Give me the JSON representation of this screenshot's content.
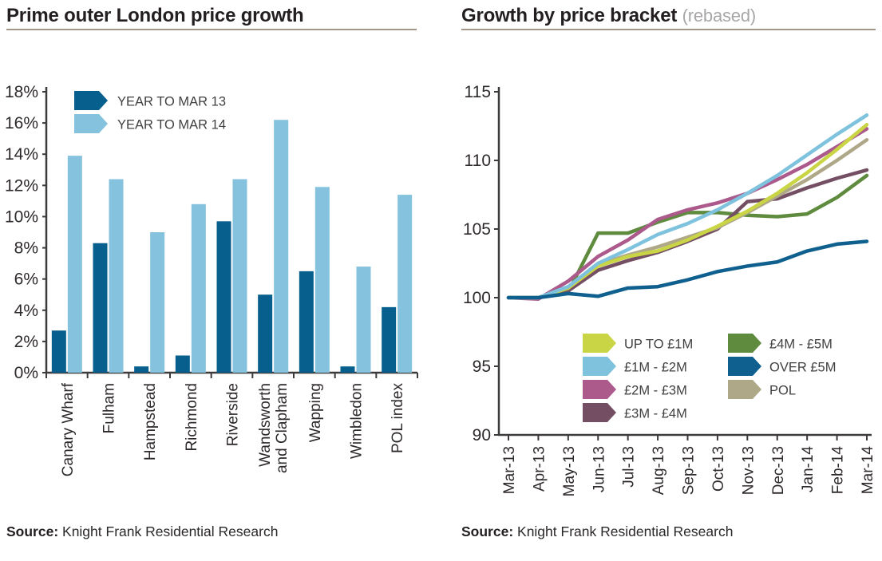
{
  "left": {
    "title": "Prime outer London price growth",
    "source_label": "Source:",
    "source_text": " Knight Frank Residential Research"
  },
  "right": {
    "title": "Growth by price bracket ",
    "title_suffix": "(rebased)",
    "source_label": "Source:",
    "source_text": " Knight Frank Residential Research"
  },
  "colors": {
    "title": "#231f20",
    "title_rule": "#a39789",
    "axis": "#3d3a3b",
    "tick_label": "#2e2a2b",
    "legend_text": "#414042",
    "rebased_suffix": "#a8a6a7"
  },
  "chart_data": [
    {
      "type": "bar",
      "title": "Prime outer London price growth",
      "categories": [
        "Canary Wharf",
        "Fulham",
        "Hampstead",
        "Richmond",
        "Riverside",
        "Wandsworth\nand Clapham",
        "Wapping",
        "Wimbledon",
        "POL index"
      ],
      "series": [
        {
          "name": "YEAR TO MAR 13",
          "color": "#075f8e",
          "values": [
            2.7,
            8.3,
            0.4,
            1.1,
            9.7,
            5.0,
            6.5,
            0.4,
            4.2
          ]
        },
        {
          "name": "YEAR TO MAR 14",
          "color": "#85c2dd",
          "values": [
            13.9,
            12.4,
            9.0,
            10.8,
            12.4,
            16.2,
            11.9,
            6.8,
            11.4
          ]
        }
      ],
      "ylim": [
        0,
        18
      ],
      "ytick_step": 2,
      "ytick_labels": [
        "0%",
        "2%",
        "4%",
        "6%",
        "8%",
        "10%",
        "12%",
        "14%",
        "16%",
        "18%"
      ],
      "grid": false,
      "legend_position": "top-left-inside"
    },
    {
      "type": "line",
      "title": "Growth by price bracket (rebased)",
      "x": [
        "Mar-13",
        "Apr-13",
        "May-13",
        "Jun-13",
        "Jul-13",
        "Aug-13",
        "Sep-13",
        "Oct-13",
        "Nov-13",
        "Dec-13",
        "Jan-14",
        "Feb-14",
        "Mar-14"
      ],
      "series": [
        {
          "name": "UP TO £1M",
          "color": "#c9d544",
          "values": [
            100,
            100,
            100.7,
            102.3,
            103.0,
            103.4,
            104.2,
            105.2,
            106.3,
            107.6,
            109.1,
            110.8,
            112.6
          ]
        },
        {
          "name": "£1M - £2M",
          "color": "#7ec2dd",
          "values": [
            100,
            100,
            100.8,
            102.5,
            103.5,
            104.6,
            105.4,
            106.4,
            107.6,
            108.9,
            110.4,
            111.9,
            113.3
          ]
        },
        {
          "name": "£2M - £3M",
          "color": "#ac5a8c",
          "values": [
            100,
            99.9,
            101.2,
            103.0,
            104.2,
            105.7,
            106.4,
            106.9,
            107.6,
            108.6,
            109.7,
            111.0,
            112.3
          ]
        },
        {
          "name": "£3M - £4M",
          "color": "#744f63",
          "values": [
            100,
            100,
            100.5,
            102.0,
            102.7,
            103.3,
            104.1,
            105.0,
            107.0,
            107.2,
            108.0,
            108.7,
            109.3
          ]
        },
        {
          "name": "£4M - £5M",
          "color": "#5e8b3d",
          "values": [
            100,
            100,
            100.4,
            104.7,
            104.7,
            105.5,
            106.2,
            106.2,
            106.0,
            105.9,
            106.1,
            107.3,
            108.9
          ]
        },
        {
          "name": "OVER £5M",
          "color": "#0f608e",
          "values": [
            100,
            100,
            100.3,
            100.1,
            100.7,
            100.8,
            101.3,
            101.9,
            102.3,
            102.6,
            103.4,
            103.9,
            104.1
          ]
        },
        {
          "name": "POL",
          "color": "#afa888",
          "values": [
            100,
            100,
            100.7,
            102.4,
            103.1,
            103.7,
            104.4,
            105.1,
            106.2,
            107.4,
            108.6,
            110.0,
            111.5
          ]
        }
      ],
      "ylim": [
        90,
        115
      ],
      "ytick_step": 5,
      "ytick_labels": [
        "90",
        "95",
        "100",
        "105",
        "110",
        "115"
      ],
      "grid": false,
      "legend_position": "bottom-right-inside",
      "z_order": [
        4,
        3,
        2,
        6,
        0,
        1,
        5
      ]
    }
  ]
}
